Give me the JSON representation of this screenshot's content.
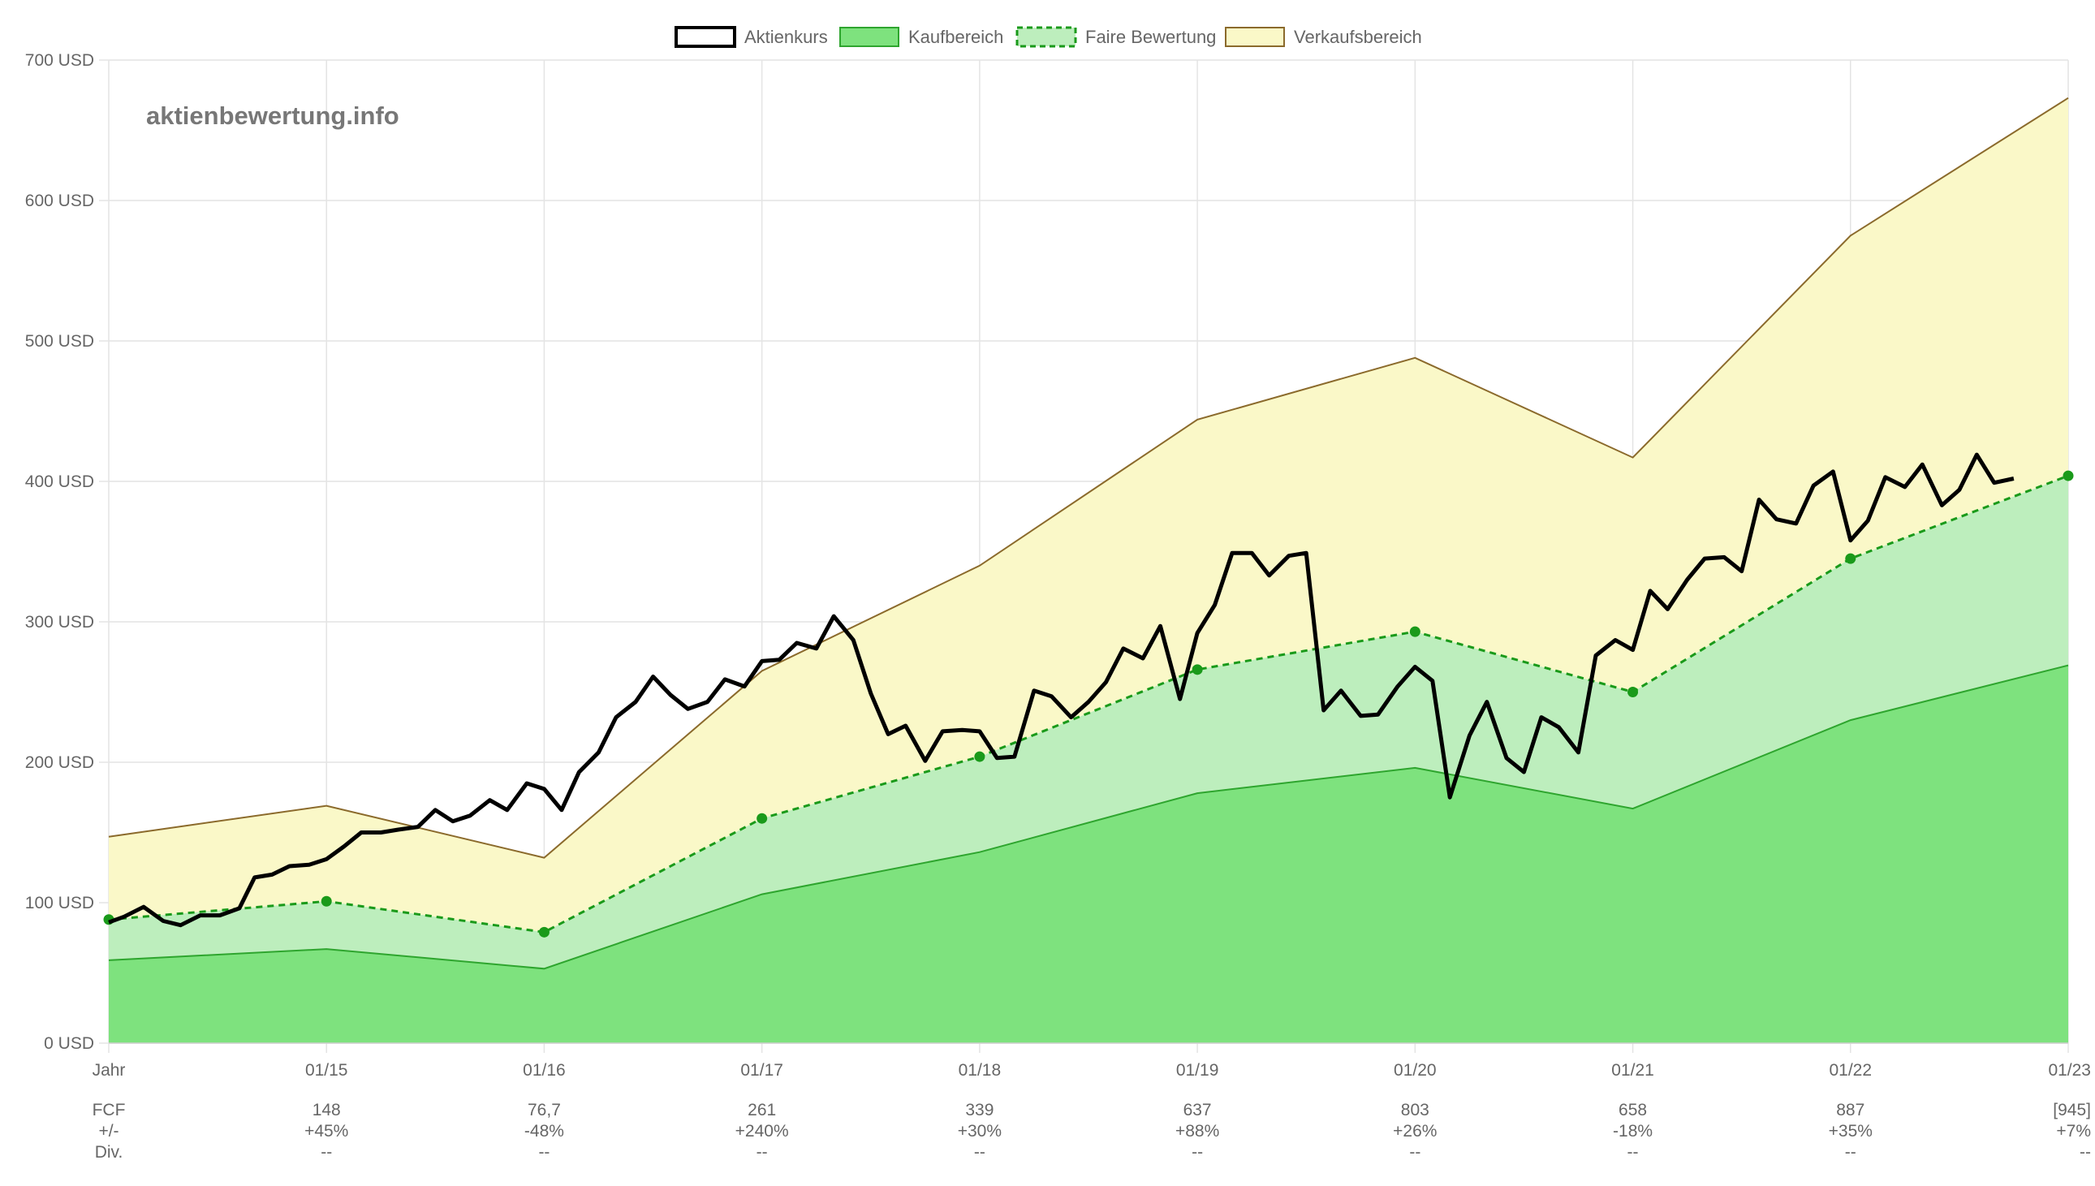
{
  "chart_data": {
    "type": "area",
    "watermark": "aktienbewertung.info",
    "y_unit": "USD",
    "ylim": [
      0,
      700
    ],
    "y_ticks": [
      "0 USD",
      "100 USD",
      "200 USD",
      "300 USD",
      "400 USD",
      "500 USD",
      "600 USD",
      "700 USD"
    ],
    "x_ticks": [
      "Jahr",
      "01/15",
      "01/16",
      "01/17",
      "01/18",
      "01/19",
      "01/20",
      "01/21",
      "01/22",
      "01/23"
    ],
    "grid": true,
    "legend_position": "top",
    "legend": [
      {
        "key": "price",
        "label": "Aktienkurs"
      },
      {
        "key": "buy",
        "label": "Kaufbereich"
      },
      {
        "key": "fair",
        "label": "Faire Bewertung"
      },
      {
        "key": "sell",
        "label": "Verkaufsbereich"
      }
    ],
    "colors": {
      "price": "#000000",
      "buy_fill": "#7ee27e",
      "buy_line": "#2ea52e",
      "fair_fill": "#bdeebd",
      "fair_line": "#1a9a1a",
      "sell_fill": "#faf8c8",
      "sell_line": "#8b6a2c",
      "grid": "#e4e4e4"
    },
    "series": [
      {
        "key": "buy",
        "name": "Kaufbereich",
        "x": [
          0,
          1,
          2,
          3,
          4,
          5,
          6,
          7,
          8,
          9
        ],
        "values": [
          59,
          67,
          53,
          106,
          136,
          178,
          196,
          167,
          230,
          269
        ]
      },
      {
        "key": "fair",
        "name": "Faire Bewertung",
        "x": [
          0,
          1,
          2,
          3,
          4,
          5,
          6,
          7,
          8,
          9
        ],
        "values": [
          88,
          101,
          79,
          160,
          204,
          266,
          293,
          250,
          345,
          404
        ]
      },
      {
        "key": "sell",
        "name": "Verkaufsbereich",
        "x": [
          0,
          1,
          2,
          3,
          4,
          5,
          6,
          7,
          8,
          9
        ],
        "values": [
          147,
          169,
          132,
          265,
          340,
          444,
          488,
          417,
          575,
          673
        ]
      },
      {
        "key": "price",
        "name": "Aktienkurs",
        "x": [
          0,
          0.07,
          0.16,
          0.25,
          0.33,
          0.42,
          0.51,
          0.6,
          0.67,
          0.75,
          0.83,
          0.92,
          1.0,
          1.08,
          1.16,
          1.25,
          1.33,
          1.42,
          1.5,
          1.58,
          1.66,
          1.75,
          1.83,
          1.92,
          2.0,
          2.08,
          2.16,
          2.25,
          2.33,
          2.42,
          2.5,
          2.58,
          2.66,
          2.75,
          2.83,
          2.92,
          3.0,
          3.08,
          3.16,
          3.25,
          3.33,
          3.42,
          3.5,
          3.58,
          3.66,
          3.75,
          3.83,
          3.92,
          4.0,
          4.08,
          4.16,
          4.25,
          4.33,
          4.42,
          4.5,
          4.58,
          4.66,
          4.75,
          4.83,
          4.92,
          5.0,
          5.08,
          5.16,
          5.25,
          5.33,
          5.42,
          5.5,
          5.58,
          5.66,
          5.75,
          5.83,
          5.92,
          6.0,
          6.08,
          6.16,
          6.25,
          6.33,
          6.42,
          6.5,
          6.58,
          6.66,
          6.75,
          6.83,
          6.92,
          7.0,
          7.08,
          7.16,
          7.25,
          7.33,
          7.42,
          7.5,
          7.58,
          7.66,
          7.75,
          7.83,
          7.92,
          8.0,
          8.08,
          8.16,
          8.25,
          8.33,
          8.42,
          8.5,
          8.58,
          8.66,
          8.75
        ],
        "values": [
          86,
          90,
          97,
          87,
          84,
          91,
          91,
          96,
          118,
          120,
          126,
          127,
          131,
          140,
          150,
          150,
          152,
          154,
          166,
          158,
          162,
          173,
          166,
          185,
          181,
          166,
          193,
          207,
          232,
          243,
          261,
          248,
          238,
          243,
          259,
          254,
          272,
          273,
          285,
          281,
          304,
          287,
          249,
          220,
          226,
          201,
          222,
          223,
          222,
          203,
          204,
          251,
          247,
          232,
          243,
          257,
          281,
          274,
          297,
          245,
          292,
          312,
          349,
          349,
          333,
          347,
          349,
          237,
          251,
          233,
          234,
          254,
          268,
          258,
          175,
          219,
          243,
          203,
          193,
          232,
          225,
          207,
          276,
          287,
          280,
          322,
          309,
          330,
          345,
          346,
          336,
          387,
          373,
          370,
          397,
          407,
          358,
          372,
          403,
          396,
          412,
          383,
          394,
          419,
          399,
          402
        ]
      }
    ]
  },
  "table": {
    "rows": [
      {
        "label": "FCF",
        "values": [
          "148",
          "76,7",
          "261",
          "339",
          "637",
          "803",
          "658",
          "887",
          "[945]"
        ]
      },
      {
        "label": "+/-",
        "values": [
          "+45%",
          "-48%",
          "+240%",
          "+30%",
          "+88%",
          "+26%",
          "-18%",
          "+35%",
          "+7%"
        ]
      },
      {
        "label": "Div.",
        "values": [
          "--",
          "--",
          "--",
          "--",
          "--",
          "--",
          "--",
          "--",
          "--"
        ]
      }
    ]
  }
}
